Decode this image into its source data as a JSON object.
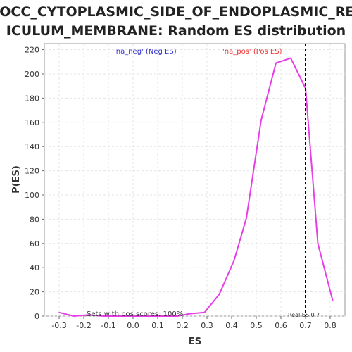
{
  "chart_data": {
    "type": "line",
    "title_line1": "GOCC_CYTOPLASMIC_SIDE_OF_ENDOPLASMIC_RET",
    "title_line2": "ICULUM_MEMBRANE: Random ES distribution",
    "xlabel": "ES",
    "ylabel": "P(ES)",
    "xlim": [
      -0.36,
      0.86
    ],
    "ylim": [
      0,
      225
    ],
    "x_ticks": [
      -0.3,
      -0.2,
      -0.1,
      0.0,
      0.1,
      0.2,
      0.3,
      0.4,
      0.5,
      0.6,
      0.7,
      0.8
    ],
    "x_tick_labels": [
      "-0.3",
      "-0.2",
      "-0.1",
      "0.0",
      "0.1",
      "0.2",
      "0.3",
      "0.4",
      "0.5",
      "0.6",
      "0.7",
      "0.8"
    ],
    "y_ticks": [
      0,
      20,
      40,
      60,
      80,
      100,
      120,
      140,
      160,
      180,
      200,
      220
    ],
    "y_tick_labels": [
      "0",
      "20",
      "40",
      "60",
      "80",
      "100",
      "120",
      "140",
      "160",
      "180",
      "200",
      "220"
    ],
    "grid": true,
    "series": [
      {
        "color": "#e83ee8",
        "x": [
          -0.3,
          -0.24,
          -0.18,
          -0.12,
          -0.06,
          0.0,
          0.06,
          0.12,
          0.18,
          0.23,
          0.29,
          0.35,
          0.41,
          0.46,
          0.52,
          0.58,
          0.64,
          0.7,
          0.75,
          0.81
        ],
        "y": [
          3,
          0,
          1,
          0,
          0,
          0,
          0,
          0,
          0,
          2,
          3,
          18,
          46,
          81,
          162,
          209,
          213,
          188,
          60,
          13
        ]
      }
    ],
    "real_es": {
      "x": 0.7,
      "label": "Real ES 0.7",
      "color": "#000000"
    },
    "legend": [
      {
        "label": "'na_neg' (Neg ES)",
        "color": "#3333cc"
      },
      {
        "label": "'na_pos' (Pos ES)",
        "color": "#ee3333"
      }
    ],
    "annotation": "Sets with pos scores: 100%"
  }
}
